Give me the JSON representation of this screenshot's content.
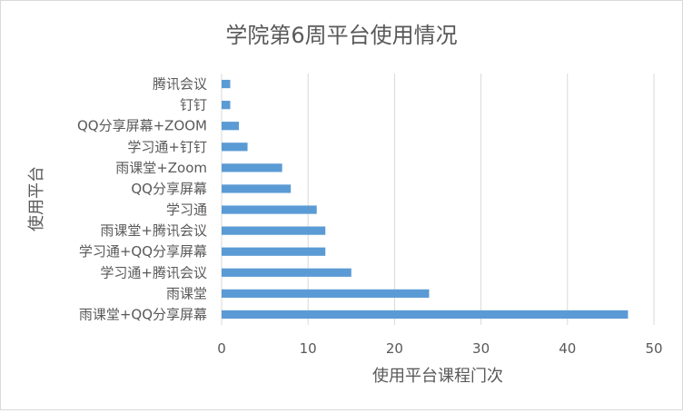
{
  "chart_data": {
    "type": "bar",
    "orientation": "horizontal",
    "title": "学院第6周平台使用情况",
    "xlabel": "使用平台课程门次",
    "ylabel": "使用平台",
    "categories": [
      "雨课堂+QQ分享屏幕",
      "雨课堂",
      "学习通+腾讯会议",
      "学习通+QQ分享屏幕",
      "雨课堂+腾讯会议",
      "学习通",
      "QQ分享屏幕",
      "雨课堂+Zoom",
      "学习通+钉钉",
      "QQ分享屏幕+ZOOM",
      "钉钉",
      "腾讯会议"
    ],
    "values": [
      47,
      24,
      15,
      12,
      12,
      11,
      8,
      7,
      3,
      2,
      1,
      1
    ],
    "xlim": [
      0,
      50
    ],
    "xticks": [
      0,
      10,
      20,
      30,
      40,
      50
    ],
    "grid": true,
    "legend": "none",
    "bar_color": "#5b9bd5"
  }
}
